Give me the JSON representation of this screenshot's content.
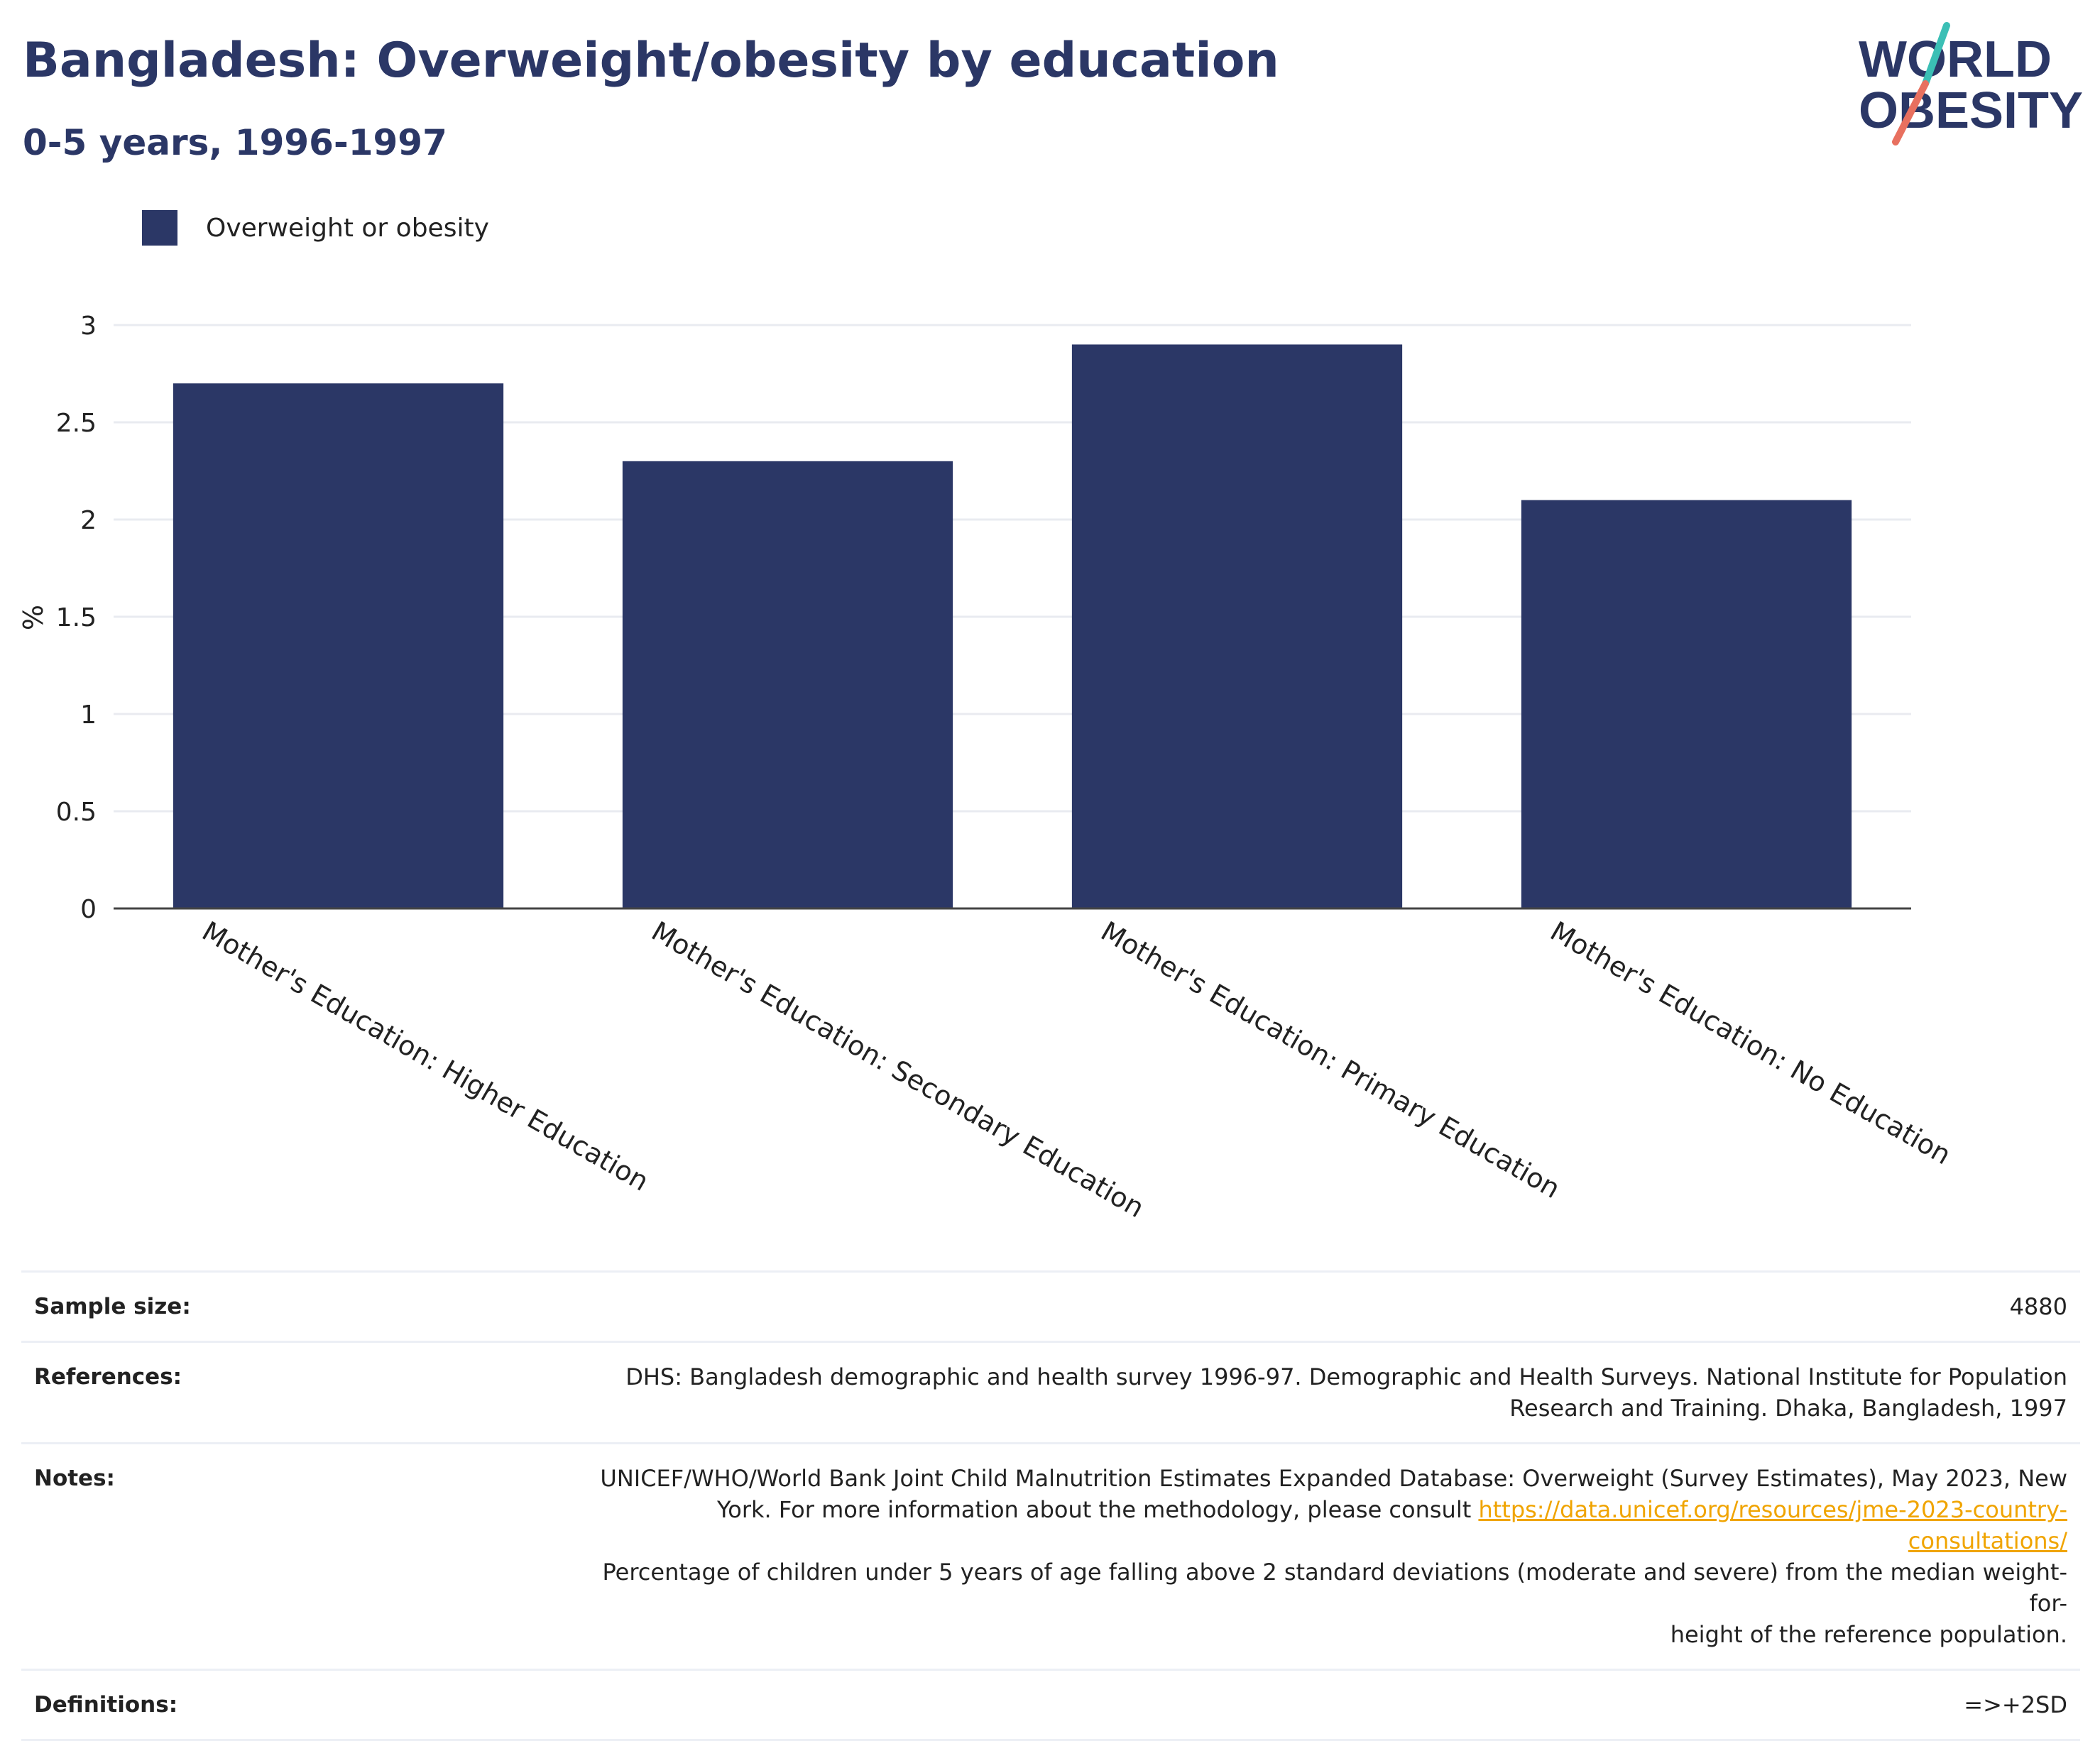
{
  "header": {
    "title": "Bangladesh: Overweight/obesity by education",
    "subtitle": "0-5 years, 1996-1997"
  },
  "logo": {
    "line1": "WORLD",
    "line2": "OBESITY"
  },
  "legend": {
    "label": "Overweight or obesity",
    "color": "#2b3766"
  },
  "chart_data": {
    "type": "bar",
    "categories": [
      "Mother's Education: Higher Education",
      "Mother's Education: Secondary Education",
      "Mother's Education: Primary Education",
      "Mother's Education: No Education"
    ],
    "series": [
      {
        "name": "Overweight or obesity",
        "values": [
          2.7,
          2.3,
          2.9,
          2.1
        ],
        "color": "#2b3766"
      }
    ],
    "ylabel": "%",
    "ylim": [
      0,
      3
    ],
    "yticks": [
      "0",
      "0.5",
      "1",
      "1.5",
      "2",
      "2.5",
      "3"
    ],
    "grid": true,
    "legend_position": "top-left"
  },
  "info": {
    "sample_size_label": "Sample size:",
    "sample_size_value": "4880",
    "references_label": "References:",
    "references_line1": "DHS: Bangladesh demographic and health survey 1996-97. Demographic and Health Surveys. National Institute for Population",
    "references_line2": "Research and Training. Dhaka, Bangladesh, 1997",
    "notes_label": "Notes:",
    "notes_line1": "UNICEF/WHO/World Bank Joint Child Malnutrition Estimates Expanded Database: Overweight (Survey Estimates), May 2023, New",
    "notes_line2_prefix": "York. For more information about the methodology, please consult ",
    "notes_link": "https://data.unicef.org/resources/jme-2023-country-consultations/",
    "notes_line3": "Percentage of children under 5 years of age falling above 2 standard deviations (moderate and severe) from the median weight-for-",
    "notes_line4": "height of the reference population.",
    "definitions_label": "Definitions:",
    "definitions_value": "=>+2SD"
  },
  "colors": {
    "brand_navy": "#2b3766",
    "link": "#f0a400",
    "logo_teal": "#3bbfb5",
    "logo_coral": "#e8705f"
  }
}
